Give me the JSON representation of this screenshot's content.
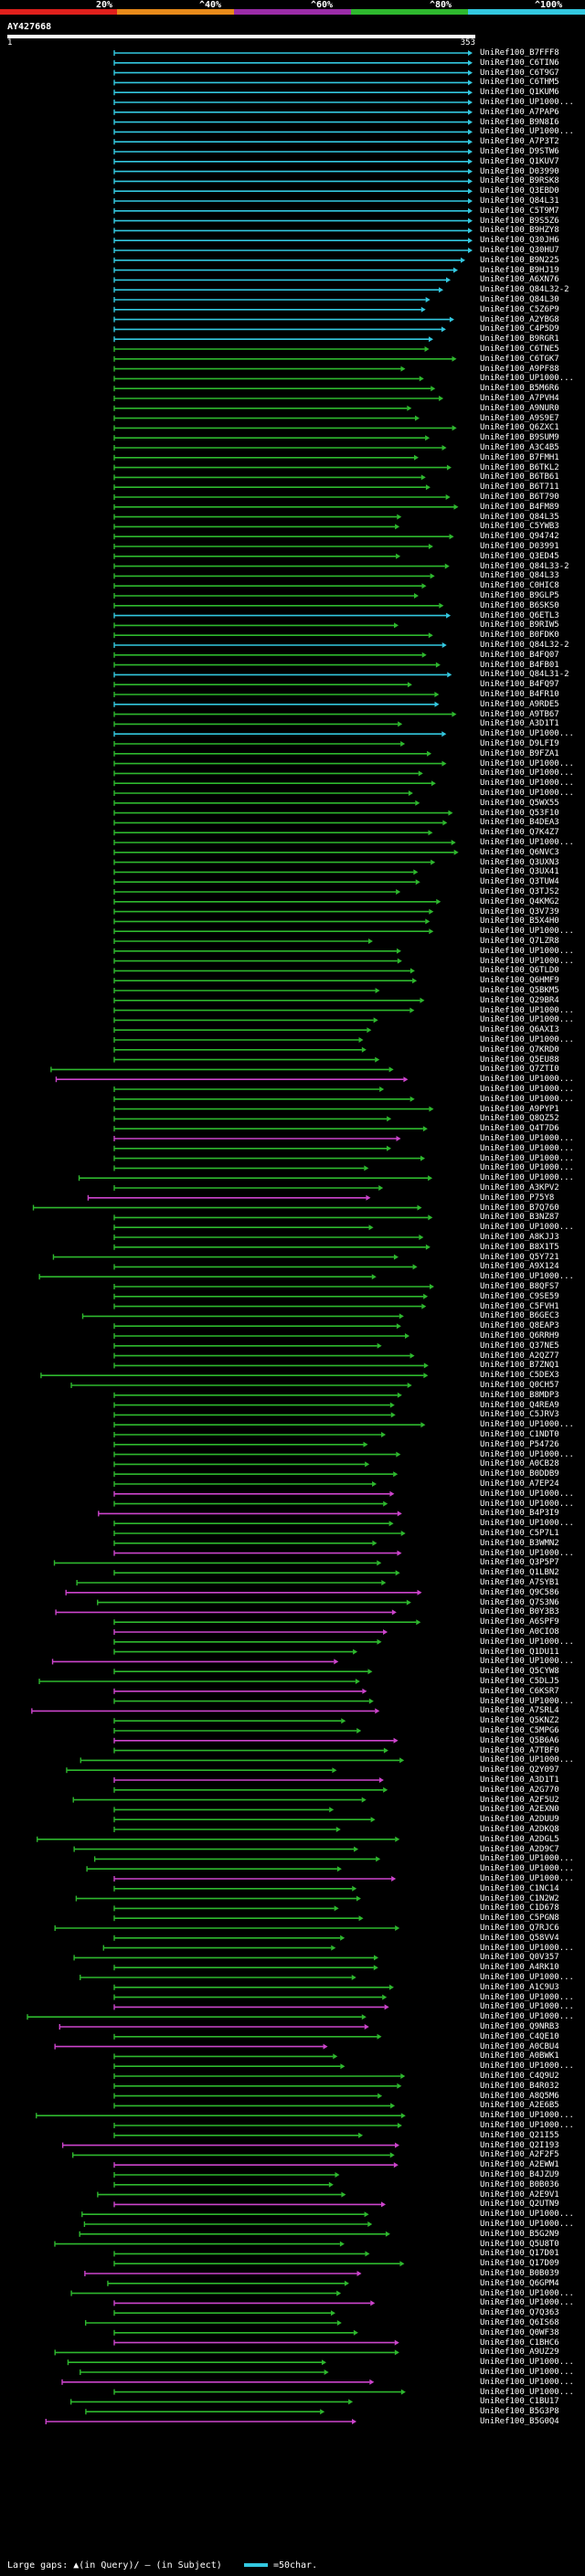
{
  "legend": {
    "labels": [
      "20%",
      "^40%",
      "^60%",
      "^80%",
      "^100%"
    ],
    "colors": [
      "#e0201c",
      "#e88a1a",
      "#9b2ca8",
      "#2eb82e",
      "#33c8e0"
    ]
  },
  "query": {
    "name": "AY427668",
    "start": "1",
    "end": "353"
  },
  "footer": {
    "text": "Large gaps: ▲(in Query)/ — (in Subject)",
    "scale": "=50char."
  },
  "hits": [
    "UniRef100_B7FFF8",
    "UniRef100_C6TIN6",
    "UniRef100_C6T9G7",
    "UniRef100_C6THM5",
    "UniRef100_Q1KUM6",
    "UniRef100_UP1000...",
    "UniRef100_A7PAP6",
    "UniRef100_B9N8I6",
    "UniRef100_UP1000...",
    "UniRef100_A7P3T2",
    "UniRef100_D9STW6",
    "UniRef100_Q1KUV7",
    "UniRef100_D03990",
    "UniRef100_B9RSK8",
    "UniRef100_Q3EBD0",
    "UniRef100_Q84L31",
    "UniRef100_C5T9M7",
    "UniRef100_B9S5Z6",
    "UniRef100_B9HZY8",
    "UniRef100_Q30JH6",
    "UniRef100_Q30HU7",
    "UniRef100_B9N225",
    "UniRef100_B9HJ19",
    "UniRef100_A6XN76",
    "UniRef100_Q84L32-2",
    "UniRef100_Q84L30",
    "UniRef100_C5Z6P9",
    "UniRef100_A2YBG8",
    "UniRef100_C4P5D9",
    "UniRef100_B9RGR1",
    "UniRef100_C6TNE5",
    "UniRef100_C6TGK7",
    "UniRef100_A9PF88",
    "UniRef100_UP1000...",
    "UniRef100_B5M6R6",
    "UniRef100_A7PVH4",
    "UniRef100_A9NUR0",
    "UniRef100_A9S9E7",
    "UniRef100_Q6ZXC1",
    "UniRef100_B9SUM9",
    "UniRef100_A3C4B5",
    "UniRef100_B7FMH1",
    "UniRef100_B6TKL2",
    "UniRef100_B6TB61",
    "UniRef100_B6T711",
    "UniRef100_B6T790",
    "UniRef100_B4FM89",
    "UniRef100_Q84L35",
    "UniRef100_C5YWB3",
    "UniRef100_Q94742",
    "UniRef100_D03991",
    "UniRef100_Q3ED45",
    "UniRef100_Q84L33-2",
    "UniRef100_Q84L33",
    "UniRef100_C0HIC8",
    "UniRef100_B9GLP5",
    "UniRef100_B6SKS0",
    "UniRef100_Q6ETL3",
    "UniRef100_B9RIW5",
    "UniRef100_B0FDK0",
    "UniRef100_Q84L32-2",
    "UniRef100_B4FQ07",
    "UniRef100_B4FB01",
    "UniRef100_Q84L31-2",
    "UniRef100_B4FQ97",
    "UniRef100_B4FR10",
    "UniRef100_A9RDE5",
    "UniRef100_A9TB67",
    "UniRef100_A3D1T1",
    "UniRef100_UP1000...",
    "UniRef100_D9LFI9",
    "UniRef100_B9FZA1",
    "UniRef100_UP1000...",
    "UniRef100_UP1000...",
    "UniRef100_UP1000...",
    "UniRef100_UP1000...",
    "UniRef100_Q5WX55",
    "UniRef100_Q53F10",
    "UniRef100_B4DEA3",
    "UniRef100_Q7K4Z7",
    "UniRef100_UP1000...",
    "UniRef100_Q6NVC3",
    "UniRef100_Q3UXN3",
    "UniRef100_Q3UX41",
    "UniRef100_Q3TUW4",
    "UniRef100_Q3TJS2",
    "UniRef100_Q4KMG2",
    "UniRef100_Q3V739",
    "UniRef100_B5X4H0",
    "UniRef100_UP1000...",
    "UniRef100_Q7LZR8",
    "UniRef100_UP1000...",
    "UniRef100_UP1000...",
    "UniRef100_Q6TLD0",
    "UniRef100_Q6HMF9",
    "UniRef100_Q5BKM5",
    "UniRef100_Q29BR4",
    "UniRef100_UP1000...",
    "UniRef100_UP1000...",
    "UniRef100_Q6AXI3",
    "UniRef100_UP1000...",
    "UniRef100_Q7KRD0",
    "UniRef100_Q5EU88",
    "UniRef100_Q7ZTI0",
    "UniRef100_UP1000...",
    "UniRef100_UP1000...",
    "UniRef100_UP1000...",
    "UniRef100_A9PYP1",
    "UniRef100_Q8QZ52",
    "UniRef100_Q4T7D6",
    "UniRef100_UP1000...",
    "UniRef100_UP1000...",
    "UniRef100_UP1000...",
    "UniRef100_UP1000...",
    "UniRef100_UP1000...",
    "UniRef100_A3KPV2",
    "UniRef100_P75Y8",
    "UniRef100_B7Q760",
    "UniRef100_B3NZ87",
    "UniRef100_UP1000...",
    "UniRef100_A8KJJ3",
    "UniRef100_B8X1T5",
    "UniRef100_Q5Y721",
    "UniRef100_A9X124",
    "UniRef100_UP1000...",
    "UniRef100_B8QFS7",
    "UniRef100_C9SE59",
    "UniRef100_C5FVH1",
    "UniRef100_B6GEC3",
    "UniRef100_Q8EAP3",
    "UniRef100_Q6RRH9",
    "UniRef100_Q37NE5",
    "UniRef100_A2QZ77",
    "UniRef100_B7ZNQ1",
    "UniRef100_C5DEX3",
    "UniRef100_Q0CH57",
    "UniRef100_B8MDP3",
    "UniRef100_Q4REA9",
    "UniRef100_C5JRV3",
    "UniRef100_UP1000...",
    "UniRef100_C1NDT0",
    "UniRef100_P54726",
    "UniRef100_UP1000...",
    "UniRef100_A0CB28",
    "UniRef100_B0DDB9",
    "UniRef100_A7EP24",
    "UniRef100_UP1000...",
    "UniRef100_UP1000...",
    "UniRef100_B4P3I9",
    "UniRef100_UP1000...",
    "UniRef100_C5P7L1",
    "UniRef100_B3WMN2",
    "UniRef100_UP1000...",
    "UniRef100_Q3P5P7",
    "UniRef100_Q1LBN2",
    "UniRef100_A7SYB1",
    "UniRef100_Q9C586",
    "UniRef100_Q7S3N6",
    "UniRef100_B0Y3B3",
    "UniRef100_A6SPF9",
    "UniRef100_A0CIO8",
    "UniRef100_UP1000...",
    "UniRef100_Q1DU11",
    "UniRef100_UP1000...",
    "UniRef100_Q5CYW8",
    "UniRef100_C5DLJ5",
    "UniRef100_C6KSR7",
    "UniRef100_UP1000...",
    "UniRef100_A7SRL4",
    "UniRef100_Q5KNZ2",
    "UniRef100_C5MPG6",
    "UniRef100_Q5B6A6",
    "UniRef100_A7TBF0",
    "UniRef100_UP1000...",
    "UniRef100_Q2Y097",
    "UniRef100_A3D1T1",
    "UniRef100_A2G770",
    "UniRef100_A2F5U2",
    "UniRef100_A2EXN0",
    "UniRef100_A2DUU9",
    "UniRef100_A2DKQ8",
    "UniRef100_A2DGL5",
    "UniRef100_A2D9C7",
    "UniRef100_UP1000...",
    "UniRef100_UP1000...",
    "UniRef100_UP1000...",
    "UniRef100_C1NC14",
    "UniRef100_C1N2W2",
    "UniRef100_C1D678",
    "UniRef100_C5PGN8",
    "UniRef100_Q7RJC6",
    "UniRef100_Q58VV4",
    "UniRef100_UP1000...",
    "UniRef100_Q0V357",
    "UniRef100_A4RK10",
    "UniRef100_UP1000...",
    "UniRef100_A1C9U3",
    "UniRef100_UP1000...",
    "UniRef100_UP1000...",
    "UniRef100_UP1000...",
    "UniRef100_Q9NRB3",
    "UniRef100_C4QE10",
    "UniRef100_A0CBU4",
    "UniRef100_A0BWK1",
    "UniRef100_UP1000...",
    "UniRef100_C4Q9U2",
    "UniRef100_B4R032",
    "UniRef100_A8Q5M6",
    "UniRef100_A2E6B5",
    "UniRef100_UP1000...",
    "UniRef100_UP1000...",
    "UniRef100_Q21I55",
    "UniRef100_Q2I193",
    "UniRef100_A2F2F5",
    "UniRef100_A2EWW1",
    "UniRef100_B4JZU9",
    "UniRef100_B0B036",
    "UniRef100_A2E9V1",
    "UniRef100_Q2UTN9",
    "UniRef100_UP1000...",
    "UniRef100_UP1000...",
    "UniRef100_B5G2N9",
    "UniRef100_Q5U8T0",
    "UniRef100_Q17D01",
    "UniRef100_Q17D09",
    "UniRef100_B0B039",
    "UniRef100_Q6GPM4",
    "UniRef100_UP1000...",
    "UniRef100_UP1000...",
    "UniRef100_Q7Q363",
    "UniRef100_Q6IS68",
    "UniRef100_Q0WF38",
    "UniRef100_C1BHC6",
    "UniRef100_A9UZ29",
    "UniRef100_UP1000...",
    "UniRef100_UP1000...",
    "UniRef100_UP1000...",
    "UniRef100_UP1000...",
    "UniRef100_C1BU17",
    "UniRef100_B5G3P8",
    "UniRef100_B5G0Q4"
  ]
}
